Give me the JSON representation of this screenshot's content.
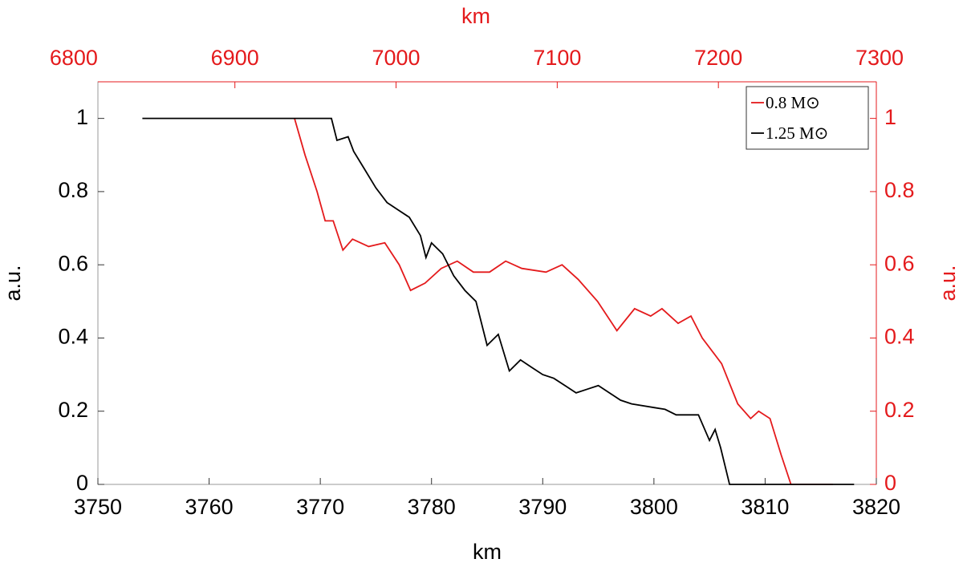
{
  "chart_data": {
    "type": "line",
    "xlabel": "km",
    "ylabel": "a.u.",
    "x2label": "km",
    "y2label": "a.u.",
    "xlim": [
      3750,
      3820
    ],
    "xticks": [
      3750,
      3760,
      3770,
      3780,
      3790,
      3800,
      3810,
      3820
    ],
    "ylim": [
      0,
      1.1
    ],
    "yticks": [
      0,
      0.2,
      0.4,
      0.6,
      0.8,
      1
    ],
    "x2lim": [
      6815,
      7298
    ],
    "x2ticks": [
      6800,
      6900,
      7000,
      7100,
      7200,
      7300
    ],
    "y2lim": [
      0,
      1.1
    ],
    "y2ticks": [
      0,
      0.2,
      0.4,
      0.6,
      0.8,
      1
    ],
    "legend": "upper right",
    "series": [
      {
        "name": "0.8 M⊙",
        "color": "#e41a1c",
        "axis": "y2",
        "x": [
          6937,
          6943.5,
          6951,
          6956,
          6961,
          6967,
          6973,
          6983,
          6993,
          7002,
          7009,
          7018,
          7028,
          7038,
          7048,
          7058,
          7068,
          7078,
          7093,
          7103,
          7113,
          7125,
          7137,
          7148,
          7158,
          7165,
          7175,
          7183,
          7190,
          7202,
          7212,
          7220,
          7225,
          7232,
          7239,
          7245,
          7271
        ],
        "values": [
          1,
          0.9,
          0.8,
          0.72,
          0.72,
          0.64,
          0.67,
          0.65,
          0.66,
          0.6,
          0.53,
          0.55,
          0.59,
          0.61,
          0.58,
          0.58,
          0.61,
          0.59,
          0.58,
          0.6,
          0.56,
          0.5,
          0.42,
          0.48,
          0.46,
          0.48,
          0.44,
          0.46,
          0.4,
          0.33,
          0.22,
          0.18,
          0.2,
          0.18,
          0.08,
          0,
          0
        ]
      },
      {
        "name": "1.25 M⊙",
        "color": "#000000",
        "x": [
          3754,
          3771,
          3771.5,
          3772.5,
          3773,
          3774,
          3775,
          3776,
          3777,
          3778,
          3779,
          3779.5,
          3780,
          3781,
          3782,
          3783,
          3784,
          3785,
          3786,
          3787,
          3788,
          3789,
          3790,
          3791,
          3792,
          3793,
          3794,
          3795,
          3796,
          3797,
          3798,
          3800,
          3801,
          3802,
          3804,
          3805,
          3805.5,
          3806,
          3806.8,
          3818
        ],
        "values": [
          1,
          1,
          0.94,
          0.95,
          0.91,
          0.86,
          0.81,
          0.77,
          0.75,
          0.73,
          0.68,
          0.62,
          0.66,
          0.63,
          0.57,
          0.53,
          0.5,
          0.38,
          0.41,
          0.31,
          0.34,
          0.32,
          0.3,
          0.29,
          0.27,
          0.25,
          0.26,
          0.27,
          0.25,
          0.23,
          0.22,
          0.21,
          0.205,
          0.19,
          0.19,
          0.12,
          0.15,
          0.1,
          0,
          0
        ]
      }
    ]
  }
}
